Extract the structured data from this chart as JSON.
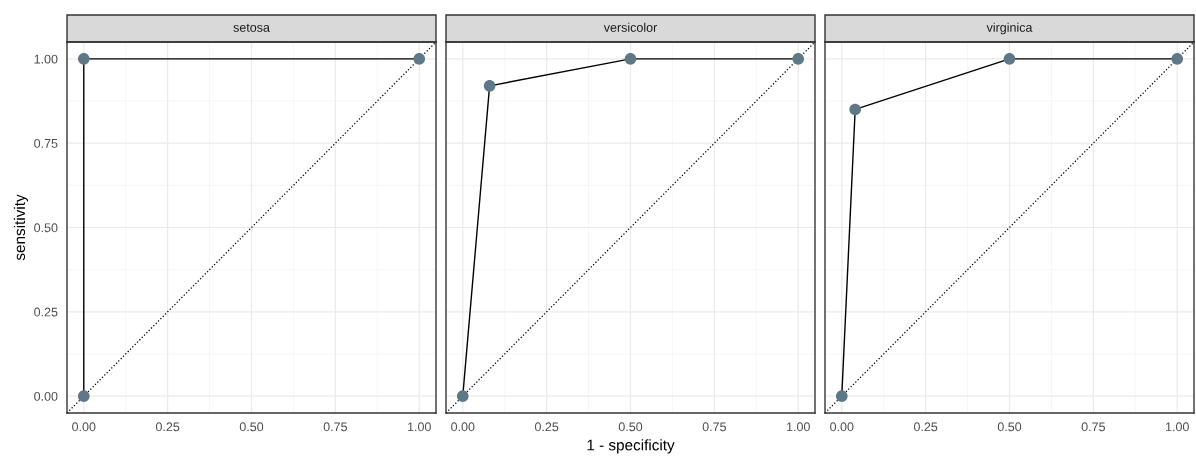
{
  "chart_data": [
    {
      "type": "line",
      "title": "setosa",
      "ylabel": "sensitivity",
      "xlim": [
        -0.05,
        1.05
      ],
      "ylim": [
        -0.05,
        1.05
      ],
      "xticks": [
        {
          "value": 0,
          "label": "0.00"
        },
        {
          "value": 0.25,
          "label": "0.25"
        },
        {
          "value": 0.5,
          "label": "0.50"
        },
        {
          "value": 0.75,
          "label": "0.75"
        },
        {
          "value": 1,
          "label": "1.00"
        }
      ],
      "yticks": [
        {
          "value": 0,
          "label": "0.00"
        },
        {
          "value": 0.25,
          "label": "0.25"
        },
        {
          "value": 0.5,
          "label": "0.50"
        },
        {
          "value": 0.75,
          "label": "0.75"
        },
        {
          "value": 1,
          "label": "1.00"
        }
      ],
      "grid": true,
      "marker": "circle",
      "series": [
        {
          "color": "#5e7888",
          "x": [
            0,
            0,
            1
          ],
          "values": [
            0,
            1,
            1
          ]
        },
        {
          "color": "#000000",
          "x": [
            -0.05,
            1.05
          ],
          "values": [
            -0.05,
            1.05
          ],
          "marker": "none",
          "line_style": "dotted"
        }
      ]
    },
    {
      "type": "line",
      "title": "versicolor",
      "xlabel": "1 - specificity",
      "xlim": [
        -0.05,
        1.05
      ],
      "ylim": [
        -0.05,
        1.05
      ],
      "xticks": [
        {
          "value": 0,
          "label": "0.00"
        },
        {
          "value": 0.25,
          "label": "0.25"
        },
        {
          "value": 0.5,
          "label": "0.50"
        },
        {
          "value": 0.75,
          "label": "0.75"
        },
        {
          "value": 1,
          "label": "1.00"
        }
      ],
      "yticks": [
        {
          "value": 0,
          "label": null
        },
        {
          "value": 0.25,
          "label": null
        },
        {
          "value": 0.5,
          "label": null
        },
        {
          "value": 0.75,
          "label": null
        },
        {
          "value": 1,
          "label": null
        }
      ],
      "tick_labels": "x",
      "grid": true,
      "marker": "circle",
      "series": [
        {
          "color": "#5e7888",
          "x": [
            0,
            0.08,
            0.5,
            1
          ],
          "values": [
            0,
            0.92,
            1,
            1
          ]
        },
        {
          "color": "#000000",
          "x": [
            -0.05,
            1.05
          ],
          "values": [
            -0.05,
            1.05
          ],
          "marker": "none",
          "line_style": "dotted"
        }
      ]
    },
    {
      "type": "line",
      "title": "virginica",
      "xlim": [
        -0.05,
        1.05
      ],
      "ylim": [
        -0.05,
        1.05
      ],
      "xticks": [
        {
          "value": 0,
          "label": "0.00"
        },
        {
          "value": 0.25,
          "label": "0.25"
        },
        {
          "value": 0.5,
          "label": "0.50"
        },
        {
          "value": 0.75,
          "label": "0.75"
        },
        {
          "value": 1,
          "label": "1.00"
        }
      ],
      "yticks": [
        {
          "value": 0,
          "label": null
        },
        {
          "value": 0.25,
          "label": null
        },
        {
          "value": 0.5,
          "label": null
        },
        {
          "value": 0.75,
          "label": null
        },
        {
          "value": 1,
          "label": null
        }
      ],
      "tick_labels": "x",
      "grid": true,
      "marker": "circle",
      "series": [
        {
          "color": "#5e7888",
          "x": [
            0,
            0.04,
            0.5,
            1
          ],
          "values": [
            0,
            0.85,
            1,
            1
          ]
        },
        {
          "color": "#000000",
          "x": [
            -0.05,
            1.05
          ],
          "values": [
            -0.05,
            1.05
          ],
          "marker": "none",
          "line_style": "dotted"
        }
      ]
    }
  ]
}
